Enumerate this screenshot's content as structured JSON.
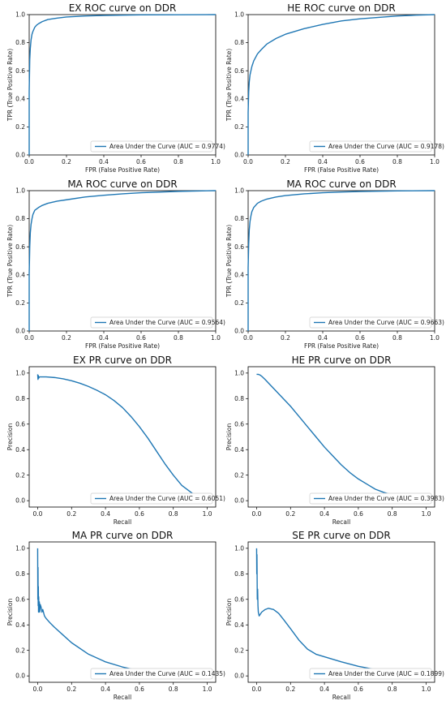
{
  "chart_data": [
    {
      "type": "line",
      "title": "EX ROC curve on DDR",
      "xlabel": "FPR (False Positive Rate)",
      "ylabel": "TPR (True Positive Rate)",
      "xlim": [
        0,
        1
      ],
      "ylim": [
        0,
        1
      ],
      "xticks": [
        "0.0",
        "0.2",
        "0.4",
        "0.6",
        "0.8",
        "1.0"
      ],
      "yticks": [
        "0.0",
        "0.2",
        "0.4",
        "0.6",
        "0.8",
        "1.0"
      ],
      "grid": false,
      "legend_position": "lower-right",
      "series": [
        {
          "name": "Area Under the Curve (AUC = 0.9774)",
          "color": "#1f77b4",
          "x": [
            0,
            0,
            0.003,
            0.006,
            0.01,
            0.015,
            0.02,
            0.03,
            0.04,
            0.05,
            0.07,
            0.1,
            0.15,
            0.2,
            0.3,
            0.4,
            0.5,
            0.6,
            0.8,
            1.0
          ],
          "y": [
            0,
            0.45,
            0.68,
            0.76,
            0.82,
            0.86,
            0.88,
            0.91,
            0.925,
            0.935,
            0.95,
            0.965,
            0.975,
            0.983,
            0.99,
            0.994,
            0.996,
            0.998,
            0.999,
            1.0
          ]
        }
      ]
    },
    {
      "type": "line",
      "title": "HE ROC curve on DDR",
      "xlabel": "FPR (False Positive Rate)",
      "ylabel": "TPR (True Positive Rate)",
      "xlim": [
        0,
        1
      ],
      "ylim": [
        0,
        1
      ],
      "xticks": [
        "0.0",
        "0.2",
        "0.4",
        "0.6",
        "0.8",
        "1.0"
      ],
      "yticks": [
        "0.0",
        "0.2",
        "0.4",
        "0.6",
        "0.8",
        "1.0"
      ],
      "grid": false,
      "legend_position": "lower-right",
      "series": [
        {
          "name": "Area Under the Curve (AUC = 0.9178)",
          "color": "#1f77b4",
          "x": [
            0,
            0,
            0.003,
            0.006,
            0.01,
            0.02,
            0.03,
            0.05,
            0.07,
            0.1,
            0.15,
            0.2,
            0.3,
            0.4,
            0.5,
            0.6,
            0.7,
            0.8,
            0.9,
            1.0
          ],
          "y": [
            0,
            0.3,
            0.45,
            0.52,
            0.57,
            0.63,
            0.67,
            0.72,
            0.75,
            0.79,
            0.83,
            0.86,
            0.9,
            0.93,
            0.955,
            0.97,
            0.98,
            0.99,
            0.996,
            1.0
          ]
        }
      ]
    },
    {
      "type": "line",
      "title": "MA ROC curve on DDR",
      "xlabel": "FPR (False Positive Rate)",
      "ylabel": "TPR (True Positive Rate)",
      "xlim": [
        0,
        1
      ],
      "ylim": [
        0,
        1
      ],
      "xticks": [
        "0.0",
        "0.2",
        "0.4",
        "0.6",
        "0.8",
        "1.0"
      ],
      "yticks": [
        "0.0",
        "0.2",
        "0.4",
        "0.6",
        "0.8",
        "1.0"
      ],
      "grid": false,
      "legend_position": "lower-right",
      "series": [
        {
          "name": "Area Under the Curve (AUC = 0.9564)",
          "color": "#1f77b4",
          "x": [
            0,
            0,
            0.003,
            0.006,
            0.01,
            0.015,
            0.02,
            0.03,
            0.05,
            0.07,
            0.1,
            0.15,
            0.2,
            0.3,
            0.4,
            0.5,
            0.6,
            0.8,
            1.0
          ],
          "y": [
            0,
            0.4,
            0.6,
            0.7,
            0.76,
            0.8,
            0.83,
            0.86,
            0.88,
            0.895,
            0.91,
            0.925,
            0.935,
            0.955,
            0.967,
            0.977,
            0.985,
            0.995,
            1.0
          ]
        }
      ]
    },
    {
      "type": "line",
      "title": "MA ROC curve on DDR",
      "xlabel": "FPR (False Positive Rate)",
      "ylabel": "TPR (True Positive Rate)",
      "xlim": [
        0,
        1
      ],
      "ylim": [
        0,
        1
      ],
      "xticks": [
        "0.0",
        "0.2",
        "0.4",
        "0.6",
        "0.8",
        "1.0"
      ],
      "yticks": [
        "0.0",
        "0.2",
        "0.4",
        "0.6",
        "0.8",
        "1.0"
      ],
      "grid": false,
      "legend_position": "lower-right",
      "series": [
        {
          "name": "Area Under the Curve (AUC = 0.9663)",
          "color": "#1f77b4",
          "x": [
            0,
            0,
            0.003,
            0.006,
            0.01,
            0.015,
            0.02,
            0.03,
            0.05,
            0.07,
            0.1,
            0.15,
            0.2,
            0.3,
            0.4,
            0.5,
            0.6,
            0.8,
            1.0
          ],
          "y": [
            0,
            0.45,
            0.62,
            0.72,
            0.78,
            0.82,
            0.85,
            0.88,
            0.91,
            0.925,
            0.94,
            0.955,
            0.965,
            0.977,
            0.985,
            0.99,
            0.994,
            0.998,
            1.0
          ]
        }
      ]
    },
    {
      "type": "line",
      "title": "EX PR curve on DDR",
      "xlabel": "Recall",
      "ylabel": "Precision",
      "xlim": [
        -0.05,
        1.05
      ],
      "ylim": [
        -0.05,
        1.05
      ],
      "xticks": [
        "0.0",
        "0.2",
        "0.4",
        "0.6",
        "0.8",
        "1.0"
      ],
      "yticks": [
        "0.0",
        "0.2",
        "0.4",
        "0.6",
        "0.8",
        "1.0"
      ],
      "grid": false,
      "legend_position": "lower-right",
      "series": [
        {
          "name": "Area Under the Curve (AUC = 0.6051)",
          "color": "#1f77b4",
          "x": [
            0,
            0.002,
            0.004,
            0.006,
            0.01,
            0.02,
            0.05,
            0.1,
            0.15,
            0.2,
            0.25,
            0.3,
            0.35,
            0.4,
            0.45,
            0.5,
            0.55,
            0.6,
            0.65,
            0.7,
            0.75,
            0.8,
            0.85,
            0.9,
            0.93
          ],
          "y": [
            0.99,
            0.95,
            0.98,
            0.96,
            0.97,
            0.97,
            0.97,
            0.965,
            0.955,
            0.94,
            0.92,
            0.895,
            0.865,
            0.83,
            0.785,
            0.73,
            0.66,
            0.58,
            0.49,
            0.39,
            0.29,
            0.2,
            0.12,
            0.07,
            0.04
          ]
        }
      ]
    },
    {
      "type": "line",
      "title": "HE PR curve on DDR",
      "xlabel": "Recall",
      "ylabel": "Precision",
      "xlim": [
        -0.05,
        1.05
      ],
      "ylim": [
        -0.05,
        1.05
      ],
      "xticks": [
        "0.0",
        "0.2",
        "0.4",
        "0.6",
        "0.8",
        "1.0"
      ],
      "yticks": [
        "0.0",
        "0.2",
        "0.4",
        "0.6",
        "0.8",
        "1.0"
      ],
      "grid": false,
      "legend_position": "lower-right",
      "series": [
        {
          "name": "Area Under the Curve (AUC = 0.3983)",
          "color": "#1f77b4",
          "x": [
            0,
            0.01,
            0.02,
            0.03,
            0.05,
            0.1,
            0.15,
            0.2,
            0.25,
            0.3,
            0.35,
            0.4,
            0.45,
            0.5,
            0.55,
            0.6,
            0.65,
            0.7,
            0.75,
            0.8,
            0.85
          ],
          "y": [
            0.99,
            0.99,
            0.985,
            0.975,
            0.95,
            0.88,
            0.81,
            0.74,
            0.66,
            0.58,
            0.5,
            0.42,
            0.35,
            0.28,
            0.22,
            0.17,
            0.13,
            0.09,
            0.065,
            0.045,
            0.03
          ]
        }
      ]
    },
    {
      "type": "line",
      "title": "MA PR curve on DDR",
      "xlabel": "Recall",
      "ylabel": "Precision",
      "xlim": [
        -0.05,
        1.05
      ],
      "ylim": [
        -0.05,
        1.05
      ],
      "xticks": [
        "0.0",
        "0.2",
        "0.4",
        "0.6",
        "0.8",
        "1.0"
      ],
      "yticks": [
        "0.0",
        "0.2",
        "0.4",
        "0.6",
        "0.8",
        "1.0"
      ],
      "grid": false,
      "legend_position": "lower-right",
      "series": [
        {
          "name": "Area Under the Curve (AUC = 0.1435)",
          "color": "#1f77b4",
          "x": [
            0,
            0.001,
            0.002,
            0.003,
            0.004,
            0.005,
            0.006,
            0.008,
            0.01,
            0.012,
            0.015,
            0.02,
            0.025,
            0.03,
            0.04,
            0.05,
            0.07,
            0.1,
            0.15,
            0.2,
            0.3,
            0.4,
            0.5,
            0.6,
            0.65
          ],
          "y": [
            1.0,
            0.6,
            0.85,
            0.55,
            0.7,
            0.5,
            0.62,
            0.52,
            0.58,
            0.5,
            0.56,
            0.54,
            0.5,
            0.52,
            0.47,
            0.45,
            0.42,
            0.38,
            0.32,
            0.26,
            0.17,
            0.11,
            0.07,
            0.04,
            0.03
          ]
        }
      ]
    },
    {
      "type": "line",
      "title": "SE PR curve on DDR",
      "xlabel": "Recall",
      "ylabel": "Precision",
      "xlim": [
        -0.05,
        1.05
      ],
      "ylim": [
        -0.05,
        1.05
      ],
      "xticks": [
        "0.0",
        "0.2",
        "0.4",
        "0.6",
        "0.8",
        "1.0"
      ],
      "yticks": [
        "0.0",
        "0.2",
        "0.4",
        "0.6",
        "0.8",
        "1.0"
      ],
      "grid": false,
      "legend_position": "lower-right",
      "series": [
        {
          "name": "Area Under the Curve (AUC = 0.1899)",
          "color": "#1f77b4",
          "x": [
            0,
            0.001,
            0.002,
            0.004,
            0.006,
            0.008,
            0.01,
            0.015,
            0.02,
            0.03,
            0.05,
            0.07,
            0.1,
            0.13,
            0.16,
            0.2,
            0.25,
            0.3,
            0.35,
            0.4,
            0.5,
            0.6,
            0.7,
            0.8,
            0.9
          ],
          "y": [
            1.0,
            0.8,
            0.95,
            0.6,
            0.68,
            0.55,
            0.5,
            0.47,
            0.48,
            0.5,
            0.52,
            0.53,
            0.52,
            0.49,
            0.44,
            0.37,
            0.28,
            0.21,
            0.17,
            0.15,
            0.11,
            0.075,
            0.05,
            0.03,
            0.02
          ]
        }
      ]
    }
  ]
}
